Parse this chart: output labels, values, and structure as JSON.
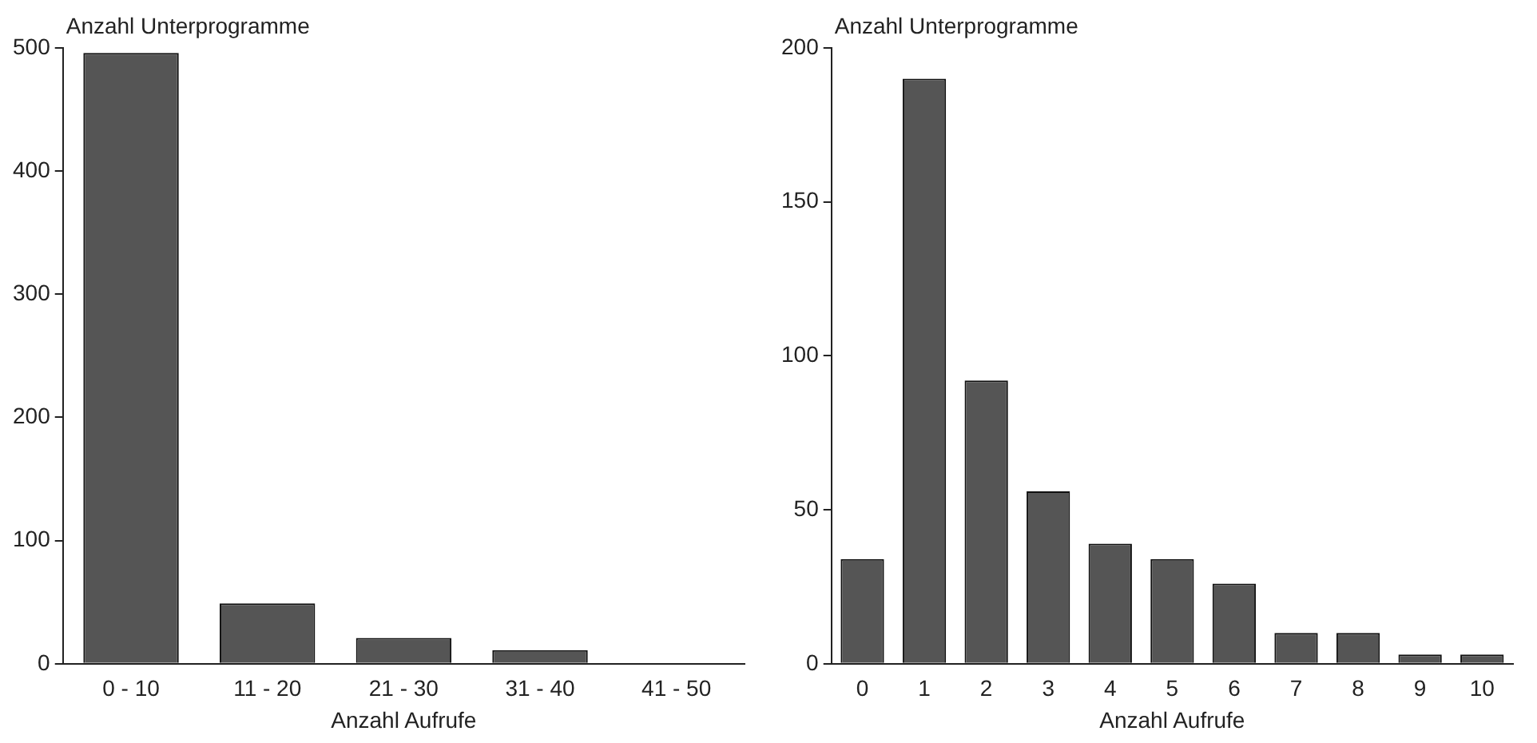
{
  "chart_data": [
    {
      "type": "bar",
      "ylabel": "Anzahl Unterprogramme",
      "xlabel": "Anzahl Aufrufe",
      "categories": [
        "0 - 10",
        "11 - 20",
        "21 - 30",
        "31 - 40",
        "41 - 50"
      ],
      "values": [
        496,
        49,
        21,
        11,
        0
      ],
      "color": "#555555",
      "ylim": [
        0,
        500
      ],
      "yticks": [
        0,
        100,
        200,
        300,
        400,
        500
      ],
      "grid": false,
      "legend": false
    },
    {
      "type": "bar",
      "ylabel": "Anzahl Unterprogramme",
      "xlabel": "Anzahl Aufrufe",
      "categories": [
        "0",
        "1",
        "2",
        "3",
        "4",
        "5",
        "6",
        "7",
        "8",
        "9",
        "10"
      ],
      "values": [
        34,
        190,
        92,
        56,
        39,
        34,
        26,
        10,
        10,
        3,
        3
      ],
      "color": "#555555",
      "ylim": [
        0,
        200
      ],
      "yticks": [
        0,
        50,
        100,
        150,
        200
      ],
      "grid": false,
      "legend": false
    }
  ]
}
